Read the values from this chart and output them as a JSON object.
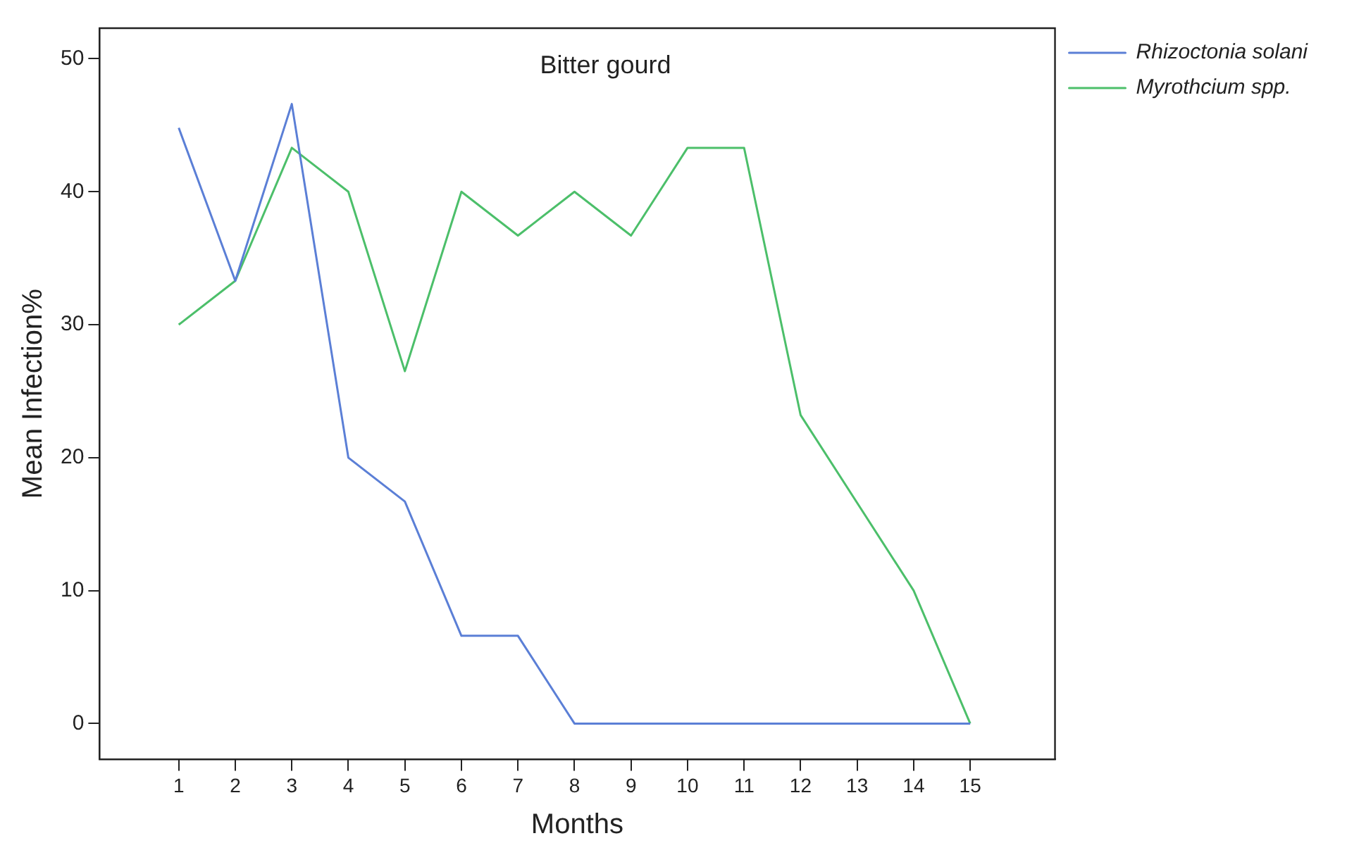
{
  "chart_data": {
    "type": "line",
    "title": "Bitter gourd",
    "xlabel": "Months",
    "ylabel": "Mean Infection%",
    "x": [
      1,
      2,
      3,
      4,
      5,
      6,
      7,
      8,
      9,
      10,
      11,
      12,
      13,
      14,
      15
    ],
    "xlim": [
      -0.4,
      16.5
    ],
    "xticks": [
      1,
      2,
      3,
      4,
      5,
      6,
      7,
      8,
      9,
      10,
      11,
      12,
      13,
      14,
      15
    ],
    "ylim": [
      -2.7,
      52.3
    ],
    "yticks": [
      0,
      10,
      20,
      30,
      40,
      50
    ],
    "series": [
      {
        "name": "Rhizoctonia solani",
        "color": "#5b7fd6",
        "values": [
          44.8,
          33.3,
          46.6,
          20,
          16.7,
          6.6,
          6.6,
          0,
          0,
          0,
          0,
          0,
          0,
          0,
          0
        ]
      },
      {
        "name": "Myrothcium spp.",
        "color": "#4cbf6a",
        "values": [
          30,
          33.3,
          43.3,
          40,
          26.5,
          40,
          36.7,
          40,
          36.7,
          43.3,
          43.3,
          23.2,
          16.6,
          10,
          0
        ]
      }
    ],
    "grid": false,
    "legend": "top right",
    "marker": "none",
    "line_style": "solid"
  }
}
